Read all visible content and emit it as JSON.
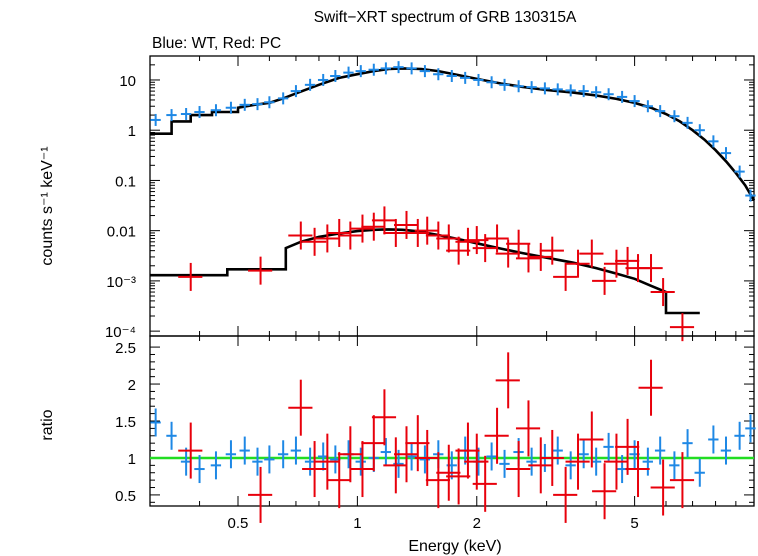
{
  "chart_data": [
    {
      "type": "scatter",
      "title": "Swift−XRT spectrum of GRB 130315A",
      "subtitle": "Blue: WT, Red: PC",
      "xlabel": "",
      "ylabel": "counts s⁻¹ keV⁻¹",
      "xscale": "log",
      "yscale": "log",
      "xlim": [
        0.3,
        10
      ],
      "ylim": [
        8e-05,
        30
      ],
      "y_ticks": [
        {
          "value": 10,
          "label": "10"
        },
        {
          "value": 1,
          "label": "1"
        },
        {
          "value": 0.1,
          "label": "0.1"
        },
        {
          "value": 0.01,
          "label": "0.01"
        },
        {
          "value": 0.001,
          "label": "10⁻³"
        },
        {
          "value": 0.0001,
          "label": "10⁻⁴"
        }
      ],
      "series": [
        {
          "color": "#1e88e5",
          "x": [
            0.31,
            0.34,
            0.37,
            0.4,
            0.44,
            0.48,
            0.52,
            0.56,
            0.6,
            0.65,
            0.7,
            0.76,
            0.82,
            0.88,
            0.95,
            1.02,
            1.1,
            1.18,
            1.27,
            1.37,
            1.48,
            1.6,
            1.73,
            1.87,
            2.02,
            2.18,
            2.35,
            2.55,
            2.75,
            2.97,
            3.2,
            3.45,
            3.72,
            4.0,
            4.3,
            4.65,
            5.0,
            5.4,
            5.8,
            6.3,
            6.8,
            7.3,
            7.9,
            8.5,
            9.2,
            9.8
          ],
          "y": [
            1.6,
            2.0,
            2.1,
            2.3,
            2.5,
            2.8,
            3.2,
            3.3,
            3.6,
            4.3,
            6.0,
            8.0,
            10,
            12,
            14,
            15,
            16,
            17,
            18,
            17,
            15,
            13,
            12,
            11,
            10,
            9,
            8,
            7.5,
            7.2,
            6.8,
            6.5,
            6.2,
            6,
            5.7,
            5.2,
            4.6,
            3.8,
            3.0,
            2.4,
            1.9,
            1.4,
            1.0,
            0.6,
            0.35,
            0.15,
            0.05
          ]
        },
        {
          "color": "#e8000b",
          "x": [
            0.38,
            0.57,
            0.72,
            0.78,
            0.84,
            0.9,
            0.96,
            1.03,
            1.1,
            1.17,
            1.25,
            1.33,
            1.42,
            1.5,
            1.6,
            1.7,
            1.8,
            1.9,
            2.0,
            2.1,
            2.25,
            2.4,
            2.55,
            2.7,
            2.9,
            3.1,
            3.35,
            3.6,
            3.9,
            4.2,
            4.5,
            4.8,
            5.1,
            5.5,
            5.9,
            6.6
          ],
          "y": [
            0.0012,
            0.0016,
            0.008,
            0.006,
            0.007,
            0.009,
            0.008,
            0.011,
            0.012,
            0.016,
            0.009,
            0.013,
            0.009,
            0.01,
            0.008,
            0.007,
            0.004,
            0.006,
            0.0065,
            0.0045,
            0.007,
            0.0035,
            0.0055,
            0.0028,
            0.003,
            0.004,
            0.0012,
            0.0022,
            0.0035,
            0.001,
            0.0022,
            0.0025,
            0.0018,
            0.0018,
            0.0006,
            0.00012
          ]
        }
      ],
      "models": [
        {
          "color": "#000000",
          "x": [
            0.3,
            0.34,
            0.34,
            0.38,
            0.38,
            0.43,
            0.43,
            0.5,
            0.5,
            0.55,
            0.6,
            0.65,
            0.7,
            0.8,
            0.9,
            1.0,
            1.1,
            1.2,
            1.3,
            1.45,
            1.6,
            1.8,
            2.0,
            2.3,
            2.6,
            3.0,
            3.5,
            4.0,
            4.5,
            5.0,
            5.5,
            6.0,
            6.5,
            7.0,
            7.5,
            8.0,
            8.5,
            9.0,
            9.5,
            10
          ],
          "y": [
            0.85,
            0.85,
            1.5,
            1.5,
            2.0,
            2.0,
            2.3,
            2.3,
            2.8,
            3.2,
            3.5,
            4.3,
            5.4,
            8.0,
            11,
            13,
            15,
            16.5,
            17,
            16.5,
            15,
            12.5,
            10.5,
            8.5,
            7.3,
            6.3,
            5.6,
            4.9,
            4.2,
            3.5,
            2.8,
            2.1,
            1.5,
            1.0,
            0.65,
            0.4,
            0.24,
            0.14,
            0.08,
            0.04
          ]
        },
        {
          "color": "#000000",
          "x": [
            0.3,
            0.47,
            0.47,
            0.66,
            0.66,
            0.72,
            0.8,
            0.9,
            1.0,
            1.1,
            1.2,
            1.3,
            1.4,
            1.5,
            1.6,
            1.8,
            2.0,
            2.3,
            2.6,
            3.0,
            3.5,
            4.0,
            4.5,
            5.0,
            5.5,
            6.0,
            6.0,
            7.3
          ],
          "y": [
            0.0013,
            0.0013,
            0.0017,
            0.0017,
            0.0045,
            0.006,
            0.0075,
            0.0088,
            0.0098,
            0.0104,
            0.0106,
            0.0104,
            0.0098,
            0.009,
            0.0082,
            0.0068,
            0.0056,
            0.0044,
            0.0036,
            0.0029,
            0.0023,
            0.0018,
            0.0014,
            0.0011,
            0.0008,
            0.0006,
            0.00023,
            0.00023
          ]
        }
      ]
    },
    {
      "type": "scatter",
      "xlabel": "Energy (keV)",
      "ylabel": "ratio",
      "xscale": "log",
      "xlim": [
        0.3,
        10
      ],
      "ylim": [
        0.35,
        2.65
      ],
      "x_ticks": [
        {
          "value": 0.5,
          "label": "0.5"
        },
        {
          "value": 1,
          "label": "1"
        },
        {
          "value": 2,
          "label": "2"
        },
        {
          "value": 5,
          "label": "5"
        }
      ],
      "y_ticks": [
        {
          "value": 0.5,
          "label": "0.5"
        },
        {
          "value": 1,
          "label": "1"
        },
        {
          "value": 1.5,
          "label": "1.5"
        },
        {
          "value": 2,
          "label": "2"
        },
        {
          "value": 2.5,
          "label": "2.5"
        }
      ],
      "reference_line": {
        "value": 1,
        "color": "#22dd22"
      },
      "series": [
        {
          "color": "#1e88e5",
          "x": [
            0.31,
            0.34,
            0.37,
            0.4,
            0.44,
            0.48,
            0.52,
            0.56,
            0.6,
            0.65,
            0.7,
            0.76,
            0.82,
            0.88,
            0.95,
            1.02,
            1.1,
            1.18,
            1.27,
            1.37,
            1.48,
            1.6,
            1.73,
            1.87,
            2.02,
            2.18,
            2.35,
            2.55,
            2.75,
            2.97,
            3.2,
            3.45,
            3.72,
            4.0,
            4.3,
            4.65,
            5.0,
            5.4,
            5.8,
            6.3,
            6.8,
            7.3,
            7.9,
            8.5,
            9.2,
            9.8
          ],
          "y": [
            1.48,
            1.3,
            0.95,
            0.85,
            0.9,
            1.05,
            1.1,
            0.95,
            0.98,
            1.05,
            1.1,
            0.95,
            1.02,
            0.98,
            1.05,
            0.95,
            1.0,
            1.08,
            0.92,
            1.02,
            0.98,
            1.05,
            0.9,
            1.1,
            0.95,
            1.02,
            0.92,
            1.08,
            0.95,
            1.0,
            1.1,
            0.9,
            1.05,
            0.95,
            1.15,
            0.85,
            1.05,
            0.95,
            1.1,
            0.9,
            1.2,
            0.8,
            1.25,
            1.1,
            1.3,
            1.4
          ]
        },
        {
          "color": "#e8000b",
          "x": [
            0.38,
            0.57,
            0.72,
            0.78,
            0.84,
            0.9,
            0.96,
            1.03,
            1.1,
            1.17,
            1.25,
            1.33,
            1.42,
            1.5,
            1.6,
            1.7,
            1.8,
            1.9,
            2.0,
            2.1,
            2.25,
            2.4,
            2.55,
            2.7,
            2.9,
            3.1,
            3.35,
            3.6,
            3.9,
            4.2,
            4.5,
            4.8,
            5.1,
            5.5,
            5.9,
            6.6
          ],
          "y": [
            1.1,
            0.5,
            1.68,
            0.85,
            0.95,
            0.7,
            1.05,
            0.85,
            1.2,
            1.55,
            0.9,
            1.05,
            1.2,
            1.0,
            0.7,
            0.8,
            0.75,
            1.1,
            0.95,
            0.65,
            1.3,
            2.05,
            0.85,
            1.4,
            0.9,
            1.0,
            0.5,
            0.95,
            1.25,
            0.55,
            0.95,
            1.15,
            0.85,
            1.95,
            0.6,
            0.7
          ]
        }
      ]
    }
  ]
}
